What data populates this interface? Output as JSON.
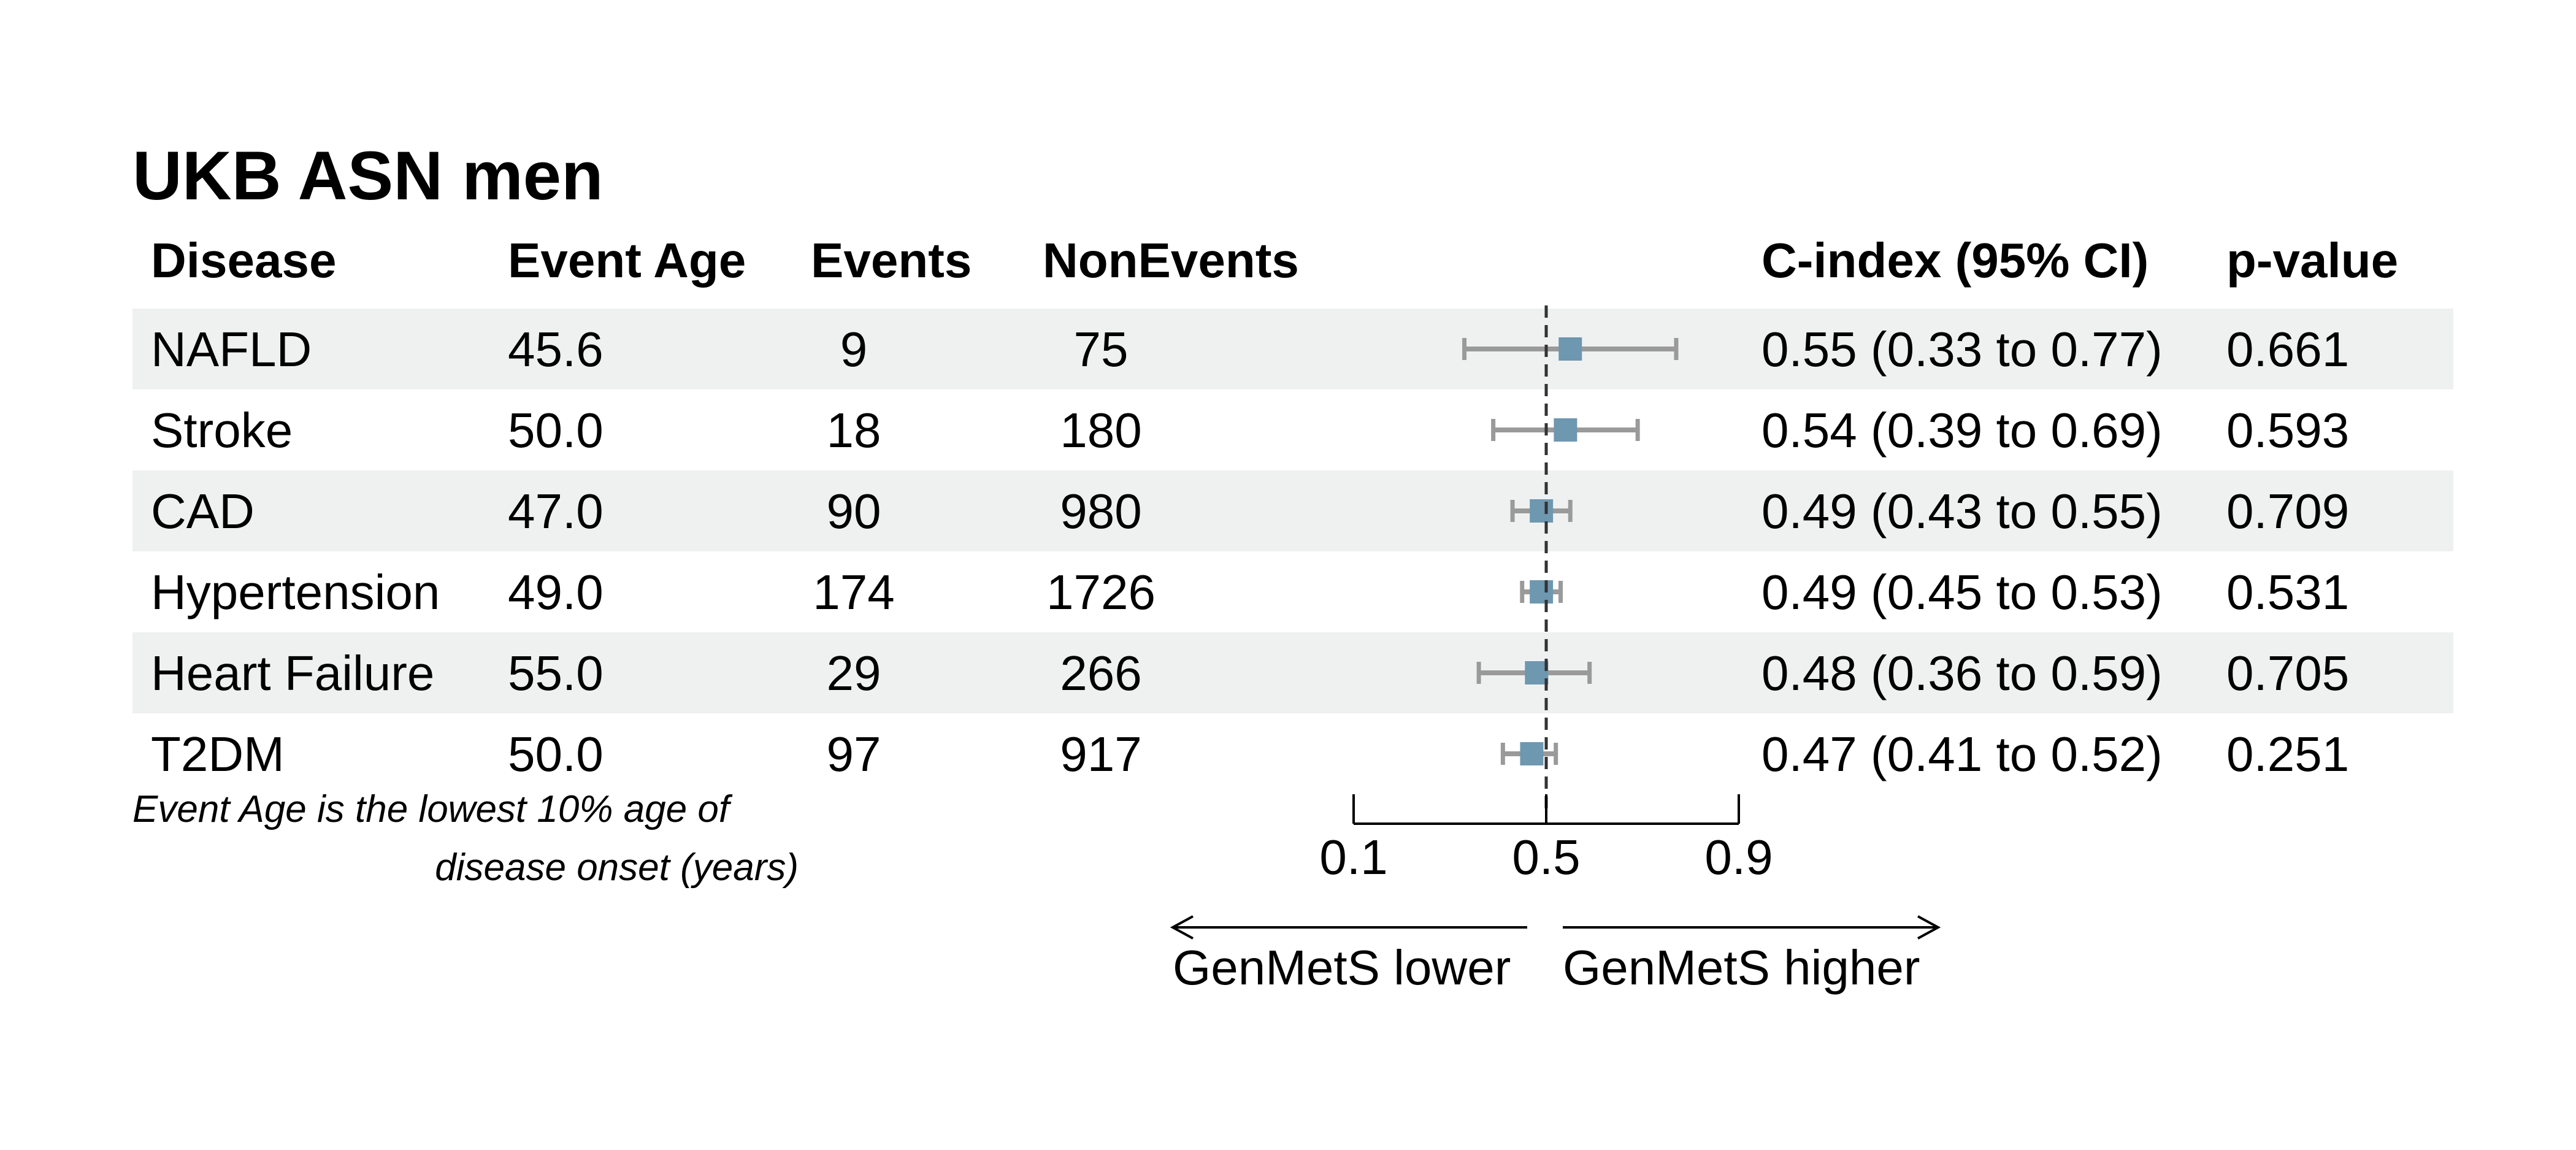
{
  "chart_data": {
    "type": "forest",
    "title": "UKB ASN men",
    "columns": {
      "disease": "Disease",
      "event_age": "Event Age",
      "events": "Events",
      "nonevents": "NonEvents",
      "cindex": "C-index (95% CI)",
      "pvalue": "p-value"
    },
    "rows": [
      {
        "disease": "NAFLD",
        "event_age": "45.6",
        "events": "9",
        "nonevents": "75",
        "estimate": 0.55,
        "lower": 0.33,
        "upper": 0.77,
        "cindex_label": "0.55 (0.33 to 0.77)",
        "pvalue": "0.661"
      },
      {
        "disease": "Stroke",
        "event_age": "50.0",
        "events": "18",
        "nonevents": "180",
        "estimate": 0.54,
        "lower": 0.39,
        "upper": 0.69,
        "cindex_label": "0.54 (0.39 to 0.69)",
        "pvalue": "0.593"
      },
      {
        "disease": "CAD",
        "event_age": "47.0",
        "events": "90",
        "nonevents": "980",
        "estimate": 0.49,
        "lower": 0.43,
        "upper": 0.55,
        "cindex_label": "0.49 (0.43 to 0.55)",
        "pvalue": "0.709"
      },
      {
        "disease": "Hypertension",
        "event_age": "49.0",
        "events": "174",
        "nonevents": "1726",
        "estimate": 0.49,
        "lower": 0.45,
        "upper": 0.53,
        "cindex_label": "0.49 (0.45 to 0.53)",
        "pvalue": "0.531"
      },
      {
        "disease": "Heart Failure",
        "event_age": "55.0",
        "events": "29",
        "nonevents": "266",
        "estimate": 0.48,
        "lower": 0.36,
        "upper": 0.59,
        "cindex_label": "0.48 (0.36 to 0.59)",
        "pvalue": "0.705"
      },
      {
        "disease": "T2DM",
        "event_age": "50.0",
        "events": "97",
        "nonevents": "917",
        "estimate": 0.47,
        "lower": 0.41,
        "upper": 0.52,
        "cindex_label": "0.47 (0.41 to 0.52)",
        "pvalue": "0.251"
      }
    ],
    "x_axis": {
      "ticks": [
        0.1,
        0.5,
        0.9
      ],
      "tick_labels": [
        "0.1",
        "0.5",
        "0.9"
      ],
      "xlim": [
        0.1,
        0.9
      ],
      "reference_line": 0.5
    },
    "arrows": {
      "left": "GenMetS lower",
      "right": "GenMetS higher"
    },
    "footnote": [
      "Event Age is the lowest 10% age of",
      "disease onset (years)"
    ],
    "colors": {
      "point": "#6e97b0",
      "ci_line": "#9a9a9a",
      "stripe": "#eff1f0",
      "reference": "#333333"
    }
  }
}
